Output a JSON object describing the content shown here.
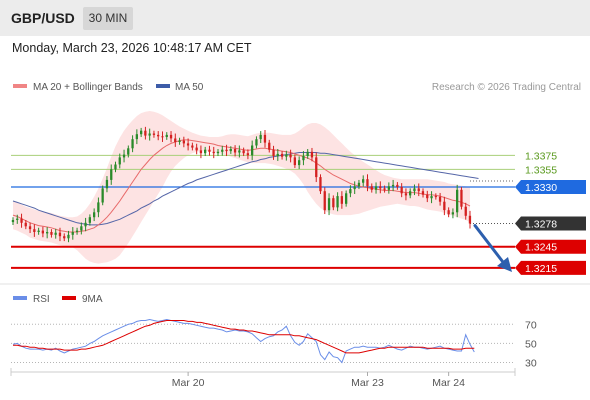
{
  "header": {
    "symbol": "GBP/USD",
    "timeframe": "30 MIN",
    "datetime": "Monday, March 23, 2026 10:48:17 AM CET"
  },
  "legend": {
    "ma20_label": "MA 20 + Bollinger Bands",
    "ma50_label": "MA 50",
    "credit": "Research © 2026 Trading Central",
    "rsi_label": "RSI",
    "rsi_ma_label": "9MA"
  },
  "colors": {
    "up_candle": "#2a8a2a",
    "down_candle": "#d42020",
    "ma20": "#e86a6a",
    "bollinger_fill": "#fde3e3",
    "ma50": "#5566a8",
    "support": "#dd0000",
    "resistance_green": "#a8cf78",
    "pivot_blue": "#1f6ae0",
    "rsi_line": "#6a8ee8",
    "rsi_ma": "#dd0000"
  },
  "chart_data": [
    {
      "type": "candlestick",
      "title": "GBP/USD",
      "timeframe": "30 MIN",
      "x_ticks": [
        "Mar 20",
        "Mar 23",
        "Mar 24"
      ],
      "ylim": [
        1.3192,
        1.3448
      ],
      "levels": [
        {
          "value": 1.3375,
          "label": "1.3375",
          "kind": "resistance"
        },
        {
          "value": 1.3355,
          "label": "1.3355",
          "kind": "resistance"
        },
        {
          "value": 1.333,
          "label": "1.3330",
          "kind": "pivot"
        },
        {
          "value": 1.3278,
          "label": "1.3278",
          "kind": "last_price"
        },
        {
          "value": 1.3245,
          "label": "1.3245",
          "kind": "support"
        },
        {
          "value": 1.3215,
          "label": "1.3215",
          "kind": "support"
        }
      ],
      "close": [
        1.3283,
        1.3285,
        1.3279,
        1.3274,
        1.327,
        1.3266,
        1.3268,
        1.3264,
        1.3266,
        1.3262,
        1.3265,
        1.326,
        1.3257,
        1.3262,
        1.3266,
        1.3268,
        1.3274,
        1.3279,
        1.3287,
        1.3294,
        1.3308,
        1.3328,
        1.334,
        1.3355,
        1.3362,
        1.3372,
        1.3376,
        1.3385,
        1.3398,
        1.3405,
        1.341,
        1.3403,
        1.3406,
        1.3404,
        1.3402,
        1.3401,
        1.3404,
        1.3399,
        1.3394,
        1.3396,
        1.3392,
        1.3389,
        1.3386,
        1.3382,
        1.3378,
        1.3383,
        1.338,
        1.3378,
        1.338,
        1.3383,
        1.3381,
        1.3384,
        1.3379,
        1.3382,
        1.3378,
        1.3375,
        1.3389,
        1.3398,
        1.3404,
        1.3393,
        1.3383,
        1.3374,
        1.3377,
        1.3373,
        1.3376,
        1.3372,
        1.3361,
        1.3368,
        1.3374,
        1.338,
        1.3372,
        1.3344,
        1.3324,
        1.3297,
        1.3314,
        1.3301,
        1.3317,
        1.3306,
        1.3321,
        1.3327,
        1.3331,
        1.3336,
        1.3341,
        1.3331,
        1.3326,
        1.3331,
        1.3328,
        1.3326,
        1.3331,
        1.3333,
        1.333,
        1.3321,
        1.3318,
        1.3324,
        1.3328,
        1.3324,
        1.3319,
        1.3314,
        1.3317,
        1.3316,
        1.3309,
        1.3297,
        1.3291,
        1.3294,
        1.3326,
        1.3302,
        1.3289,
        1.3278
      ],
      "ma20": [
        1.329,
        1.3288,
        1.3285,
        1.3282,
        1.3279,
        1.3277,
        1.3275,
        1.3274,
        1.3273,
        1.3272,
        1.327,
        1.3268,
        1.3267,
        1.3266,
        1.3266,
        1.3266,
        1.3267,
        1.3268,
        1.327,
        1.3272,
        1.3276,
        1.3281,
        1.3287,
        1.3294,
        1.3302,
        1.331,
        1.3319,
        1.3328,
        1.3337,
        1.3346,
        1.3355,
        1.3362,
        1.3369,
        1.3375,
        1.338,
        1.3385,
        1.3389,
        1.3392,
        1.3394,
        1.3396,
        1.3397,
        1.3397,
        1.3396,
        1.3395,
        1.3394,
        1.3393,
        1.3392,
        1.3391,
        1.3389,
        1.3388,
        1.3387,
        1.3386,
        1.3385,
        1.3384,
        1.3383,
        1.3382,
        1.3383,
        1.3384,
        1.3385,
        1.3385,
        1.3384,
        1.3383,
        1.3382,
        1.3381,
        1.338,
        1.3379,
        1.3377,
        1.3375,
        1.3373,
        1.3371,
        1.3368,
        1.3364,
        1.336,
        1.3355,
        1.3351,
        1.3347,
        1.3344,
        1.3341,
        1.3338,
        1.3335,
        1.3333,
        1.3331,
        1.333,
        1.3329,
        1.3328,
        1.3327,
        1.3326,
        1.3325,
        1.3325,
        1.3325,
        1.3324,
        1.3323,
        1.3322,
        1.3322,
        1.3322,
        1.3321,
        1.332,
        1.3319,
        1.3319,
        1.3318,
        1.3317,
        1.3315,
        1.3313,
        1.3311,
        1.331,
        1.3308,
        1.3306,
        1.3303
      ],
      "bb_upper": [
        1.331,
        1.3308,
        1.3305,
        1.3302,
        1.33,
        1.3298,
        1.3296,
        1.3295,
        1.3294,
        1.3293,
        1.3291,
        1.3289,
        1.3288,
        1.3287,
        1.3287,
        1.3288,
        1.3292,
        1.3298,
        1.3306,
        1.3316,
        1.3328,
        1.3342,
        1.3357,
        1.3373,
        1.3388,
        1.34,
        1.341,
        1.3418,
        1.3425,
        1.3431,
        1.3435,
        1.3437,
        1.3438,
        1.3437,
        1.3435,
        1.3432,
        1.3428,
        1.3424,
        1.342,
        1.3416,
        1.3413,
        1.341,
        1.3407,
        1.3405,
        1.3403,
        1.3402,
        1.3401,
        1.3401,
        1.3401,
        1.3402,
        1.3404,
        1.3405,
        1.3405,
        1.3404,
        1.3403,
        1.3402,
        1.3404,
        1.3406,
        1.3407,
        1.3407,
        1.3407,
        1.3406,
        1.3405,
        1.3404,
        1.3404,
        1.3404,
        1.3406,
        1.341,
        1.3415,
        1.3419,
        1.3421,
        1.3421,
        1.3419,
        1.3415,
        1.341,
        1.3404,
        1.3398,
        1.3392,
        1.3386,
        1.338,
        1.3375,
        1.337,
        1.3366,
        1.3362,
        1.3358,
        1.3354,
        1.335,
        1.3347,
        1.3345,
        1.3343,
        1.3342,
        1.3341,
        1.3341,
        1.3341,
        1.3341,
        1.3341,
        1.3341,
        1.3341,
        1.334,
        1.3339,
        1.3338,
        1.3337,
        1.3335,
        1.3334,
        1.3333,
        1.3332,
        1.3331,
        1.333
      ],
      "bb_lower": [
        1.327,
        1.3268,
        1.3265,
        1.3262,
        1.3258,
        1.3256,
        1.3254,
        1.3253,
        1.3252,
        1.3251,
        1.3249,
        1.3247,
        1.3246,
        1.3245,
        1.3244,
        1.324,
        1.3234,
        1.3228,
        1.3224,
        1.3222,
        1.3221,
        1.3222,
        1.3223,
        1.3225,
        1.3228,
        1.3233,
        1.3241,
        1.325,
        1.326,
        1.327,
        1.328,
        1.329,
        1.33,
        1.331,
        1.332,
        1.333,
        1.3342,
        1.3352,
        1.336,
        1.3366,
        1.3371,
        1.3375,
        1.3378,
        1.338,
        1.3381,
        1.3381,
        1.3381,
        1.338,
        1.3378,
        1.3377,
        1.3375,
        1.3373,
        1.3371,
        1.3369,
        1.3367,
        1.3365,
        1.3364,
        1.3364,
        1.3364,
        1.3364,
        1.3363,
        1.3362,
        1.336,
        1.3358,
        1.3356,
        1.3353,
        1.3349,
        1.3342,
        1.3334,
        1.3323,
        1.3314,
        1.3306,
        1.33,
        1.3296,
        1.3293,
        1.3291,
        1.329,
        1.329,
        1.329,
        1.329,
        1.3291,
        1.3292,
        1.3294,
        1.3296,
        1.3298,
        1.33,
        1.3302,
        1.3303,
        1.3304,
        1.3305,
        1.3306,
        1.3305,
        1.3304,
        1.3303,
        1.3303,
        1.3302,
        1.33,
        1.3298,
        1.3297,
        1.3296,
        1.3295,
        1.3293,
        1.3291,
        1.3289,
        1.3287,
        1.3285,
        1.3283,
        1.328
      ],
      "ma50": [
        1.331,
        1.3308,
        1.3306,
        1.3304,
        1.3302,
        1.33,
        1.3297,
        1.3295,
        1.3293,
        1.3291,
        1.3289,
        1.3287,
        1.3285,
        1.3283,
        1.3281,
        1.3279,
        1.3278,
        1.3277,
        1.3276,
        1.3276,
        1.3276,
        1.3277,
        1.3278,
        1.328,
        1.3282,
        1.3284,
        1.3287,
        1.329,
        1.3293,
        1.3296,
        1.33,
        1.3303,
        1.3306,
        1.331,
        1.3313,
        1.3317,
        1.332,
        1.3323,
        1.3326,
        1.3329,
        1.3332,
        1.3335,
        1.3337,
        1.334,
        1.3342,
        1.3344,
        1.3346,
        1.3348,
        1.335,
        1.3352,
        1.3354,
        1.3356,
        1.3358,
        1.336,
        1.3362,
        1.3364,
        1.3366,
        1.3367,
        1.3369,
        1.337,
        1.3372,
        1.3373,
        1.3374,
        1.3375,
        1.3376,
        1.3377,
        1.3378,
        1.3379,
        1.3379,
        1.3379,
        1.3379,
        1.3379,
        1.3378,
        1.3378,
        1.3377,
        1.3376,
        1.3375,
        1.3374,
        1.3373,
        1.3372,
        1.3371,
        1.337,
        1.3369,
        1.3368,
        1.3367,
        1.3366,
        1.3365,
        1.3364,
        1.3363,
        1.3362,
        1.3361,
        1.336,
        1.3359,
        1.3358,
        1.3357,
        1.3356,
        1.3355,
        1.3354,
        1.3353,
        1.3352,
        1.3351,
        1.335,
        1.3349,
        1.3348,
        1.3347,
        1.3346,
        1.3345,
        1.3344,
        1.3343,
        1.3342
      ]
    },
    {
      "type": "line",
      "title": "RSI",
      "y_ticks": [
        70,
        50,
        30
      ],
      "ylim": [
        20,
        85
      ],
      "series": [
        {
          "name": "RSI",
          "values": [
            49,
            50,
            47,
            45,
            44,
            44,
            44,
            43,
            44,
            43,
            45,
            42,
            40,
            42,
            44,
            45,
            46,
            47,
            50,
            52,
            55,
            58,
            60,
            62,
            64,
            66,
            68,
            70,
            71,
            73,
            74,
            74,
            75,
            74,
            73,
            74,
            75,
            74,
            73,
            72,
            71,
            71,
            70,
            69,
            68,
            67,
            66,
            66,
            65,
            64,
            62,
            63,
            64,
            63,
            63,
            62,
            60,
            56,
            52,
            55,
            57,
            58,
            62,
            64,
            68,
            58,
            51,
            48,
            52,
            60,
            56,
            52,
            38,
            33,
            41,
            36,
            35,
            30,
            42,
            44,
            46,
            46,
            47,
            46,
            46,
            46,
            45,
            46,
            48,
            46,
            44,
            43,
            45,
            47,
            46,
            46,
            45,
            44,
            45,
            46,
            47,
            45,
            44,
            43,
            42,
            42,
            59,
            49,
            41
          ]
        },
        {
          "name": "9MA",
          "values": [
            48,
            48,
            47,
            47,
            46,
            46,
            45,
            45,
            44,
            44,
            44,
            44,
            43,
            43,
            43,
            43,
            44,
            44,
            45,
            46,
            47,
            48,
            50,
            52,
            54,
            56,
            58,
            60,
            62,
            64,
            66,
            68,
            69,
            71,
            72,
            73,
            74,
            74,
            74,
            74,
            74,
            73,
            73,
            72,
            72,
            71,
            70,
            69,
            68,
            67,
            66,
            65,
            65,
            64,
            64,
            63,
            63,
            62,
            61,
            60,
            59,
            59,
            59,
            59,
            59,
            59,
            58,
            58,
            57,
            56,
            55,
            54,
            52,
            50,
            48,
            46,
            44,
            42,
            40,
            40,
            40,
            40,
            41,
            42,
            43,
            44,
            45,
            45,
            46,
            46,
            46,
            46,
            46,
            46,
            46,
            46,
            46,
            45,
            45,
            45,
            45,
            45,
            45,
            44,
            44,
            44,
            45,
            45,
            45
          ]
        }
      ]
    }
  ]
}
